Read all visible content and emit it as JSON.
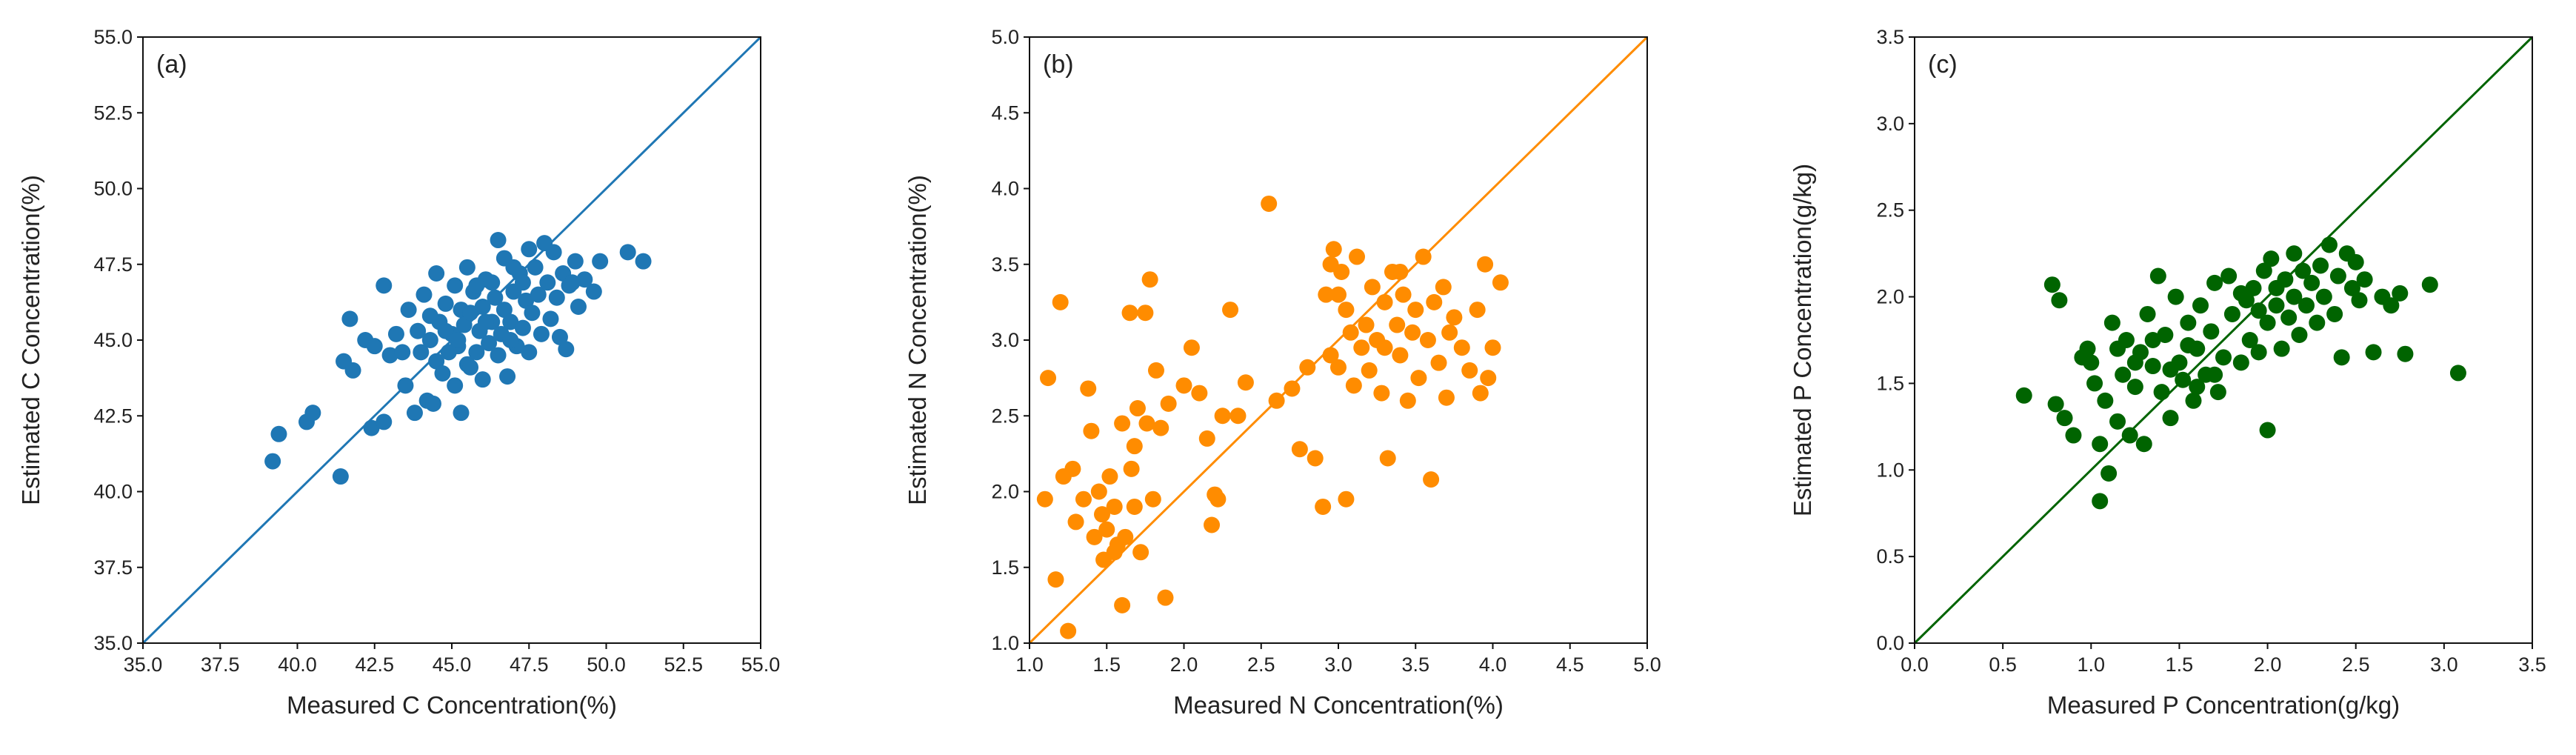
{
  "chart_data": [
    {
      "type": "scatter",
      "panel_label": "(a)",
      "xlabel": "Measured C Concentration(%)",
      "ylabel": "Estimated C Concentration(%)",
      "xlim": [
        35.0,
        55.0
      ],
      "ylim": [
        35.0,
        55.0
      ],
      "xticks": [
        "35.0",
        "37.5",
        "40.0",
        "42.5",
        "45.0",
        "47.5",
        "50.0",
        "52.5",
        "55.0"
      ],
      "yticks": [
        "35.0",
        "37.5",
        "40.0",
        "42.5",
        "45.0",
        "47.5",
        "50.0",
        "52.5",
        "55.0"
      ],
      "reference_line": "1:1",
      "color": "#1f77b4",
      "points": [
        [
          39.2,
          41.0
        ],
        [
          39.4,
          41.9
        ],
        [
          40.3,
          42.3
        ],
        [
          40.5,
          42.6
        ],
        [
          41.4,
          40.5
        ],
        [
          41.5,
          44.3
        ],
        [
          41.7,
          45.7
        ],
        [
          41.8,
          44.0
        ],
        [
          42.2,
          45.0
        ],
        [
          42.4,
          42.1
        ],
        [
          42.5,
          44.8
        ],
        [
          42.8,
          46.8
        ],
        [
          42.8,
          42.3
        ],
        [
          43.0,
          44.5
        ],
        [
          43.2,
          45.2
        ],
        [
          43.4,
          44.6
        ],
        [
          43.5,
          43.5
        ],
        [
          43.6,
          46.0
        ],
        [
          43.8,
          42.6
        ],
        [
          44.0,
          44.6
        ],
        [
          44.1,
          46.5
        ],
        [
          44.2,
          43.0
        ],
        [
          44.3,
          45.0
        ],
        [
          44.4,
          42.9
        ],
        [
          44.5,
          47.2
        ],
        [
          44.5,
          44.3
        ],
        [
          44.6,
          45.6
        ],
        [
          44.7,
          43.9
        ],
        [
          44.8,
          46.2
        ],
        [
          44.9,
          44.6
        ],
        [
          45.0,
          45.2
        ],
        [
          45.1,
          46.8
        ],
        [
          45.1,
          43.5
        ],
        [
          45.2,
          44.8
        ],
        [
          45.3,
          42.6
        ],
        [
          45.3,
          46.0
        ],
        [
          45.4,
          45.5
        ],
        [
          45.5,
          47.4
        ],
        [
          45.5,
          44.2
        ],
        [
          45.6,
          45.9
        ],
        [
          45.7,
          46.6
        ],
        [
          45.8,
          44.6
        ],
        [
          45.9,
          45.3
        ],
        [
          46.0,
          46.1
        ],
        [
          46.0,
          43.7
        ],
        [
          46.1,
          47.0
        ],
        [
          46.2,
          44.9
        ],
        [
          46.3,
          45.6
        ],
        [
          46.4,
          46.4
        ],
        [
          46.5,
          48.3
        ],
        [
          46.5,
          44.5
        ],
        [
          46.6,
          45.2
        ],
        [
          46.7,
          47.7
        ],
        [
          46.7,
          46.0
        ],
        [
          46.8,
          43.8
        ],
        [
          46.9,
          45.6
        ],
        [
          47.0,
          46.6
        ],
        [
          47.1,
          44.8
        ],
        [
          47.2,
          47.2
        ],
        [
          47.3,
          45.4
        ],
        [
          47.4,
          46.3
        ],
        [
          47.5,
          48.0
        ],
        [
          47.5,
          44.6
        ],
        [
          47.6,
          45.9
        ],
        [
          47.7,
          47.4
        ],
        [
          47.8,
          46.5
        ],
        [
          47.9,
          45.2
        ],
        [
          48.0,
          48.2
        ],
        [
          48.1,
          46.9
        ],
        [
          48.2,
          45.7
        ],
        [
          48.3,
          47.9
        ],
        [
          48.4,
          46.4
        ],
        [
          48.5,
          45.1
        ],
        [
          48.6,
          47.2
        ],
        [
          48.7,
          44.7
        ],
        [
          48.8,
          46.8
        ],
        [
          49.0,
          47.6
        ],
        [
          49.1,
          46.1
        ],
        [
          49.3,
          47.0
        ],
        [
          49.6,
          46.6
        ],
        [
          49.8,
          47.6
        ],
        [
          50.7,
          47.9
        ],
        [
          51.2,
          47.6
        ],
        [
          44.3,
          45.8
        ],
        [
          45.2,
          45.0
        ],
        [
          45.8,
          46.8
        ],
        [
          46.3,
          46.9
        ],
        [
          46.9,
          45.0
        ],
        [
          47.3,
          46.9
        ],
        [
          45.6,
          44.1
        ],
        [
          44.8,
          45.3
        ],
        [
          46.1,
          45.6
        ],
        [
          47.0,
          47.4
        ],
        [
          48.9,
          46.9
        ],
        [
          43.9,
          45.3
        ]
      ]
    },
    {
      "type": "scatter",
      "panel_label": "(b)",
      "xlabel": "Measured N Concentration(%)",
      "ylabel": "Estimated N Concentration(%)",
      "xlim": [
        1.0,
        5.0
      ],
      "ylim": [
        1.0,
        5.0
      ],
      "xticks": [
        "1.0",
        "1.5",
        "2.0",
        "2.5",
        "3.0",
        "3.5",
        "4.0",
        "4.5",
        "5.0"
      ],
      "yticks": [
        "1.0",
        "1.5",
        "2.0",
        "2.5",
        "3.0",
        "3.5",
        "4.0",
        "4.5",
        "5.0"
      ],
      "reference_line": "1:1",
      "color": "#ff8c00",
      "points": [
        [
          1.1,
          1.95
        ],
        [
          1.12,
          2.75
        ],
        [
          1.17,
          1.42
        ],
        [
          1.2,
          3.25
        ],
        [
          1.22,
          2.1
        ],
        [
          1.25,
          1.08
        ],
        [
          1.28,
          2.15
        ],
        [
          1.3,
          1.8
        ],
        [
          1.35,
          1.95
        ],
        [
          1.38,
          2.68
        ],
        [
          1.4,
          2.4
        ],
        [
          1.42,
          1.7
        ],
        [
          1.45,
          2.0
        ],
        [
          1.47,
          1.85
        ],
        [
          1.5,
          1.75
        ],
        [
          1.52,
          2.1
        ],
        [
          1.55,
          1.6
        ],
        [
          1.57,
          1.65
        ],
        [
          1.6,
          2.45
        ],
        [
          1.6,
          1.25
        ],
        [
          1.62,
          1.7
        ],
        [
          1.65,
          3.18
        ],
        [
          1.66,
          2.15
        ],
        [
          1.68,
          1.9
        ],
        [
          1.7,
          2.55
        ],
        [
          1.72,
          1.6
        ],
        [
          1.75,
          3.18
        ],
        [
          1.76,
          2.45
        ],
        [
          1.78,
          3.4
        ],
        [
          1.8,
          1.95
        ],
        [
          1.82,
          2.8
        ],
        [
          1.85,
          2.42
        ],
        [
          1.88,
          1.3
        ],
        [
          1.9,
          2.58
        ],
        [
          2.0,
          2.7
        ],
        [
          2.05,
          2.95
        ],
        [
          2.1,
          2.65
        ],
        [
          2.15,
          2.35
        ],
        [
          2.18,
          1.78
        ],
        [
          2.2,
          1.98
        ],
        [
          2.25,
          2.5
        ],
        [
          2.3,
          3.2
        ],
        [
          2.35,
          2.5
        ],
        [
          2.4,
          2.72
        ],
        [
          2.55,
          3.9
        ],
        [
          2.6,
          2.6
        ],
        [
          2.7,
          2.68
        ],
        [
          2.75,
          2.28
        ],
        [
          2.8,
          2.82
        ],
        [
          2.85,
          2.22
        ],
        [
          2.9,
          1.9
        ],
        [
          2.92,
          3.3
        ],
        [
          2.95,
          2.9
        ],
        [
          2.97,
          3.6
        ],
        [
          3.0,
          2.82
        ],
        [
          3.02,
          3.45
        ],
        [
          3.05,
          3.2
        ],
        [
          3.05,
          1.95
        ],
        [
          3.08,
          3.05
        ],
        [
          3.1,
          2.7
        ],
        [
          3.12,
          3.55
        ],
        [
          3.15,
          2.95
        ],
        [
          3.18,
          3.1
        ],
        [
          3.2,
          2.8
        ],
        [
          3.22,
          3.35
        ],
        [
          3.25,
          3.0
        ],
        [
          3.28,
          2.65
        ],
        [
          3.3,
          3.25
        ],
        [
          3.32,
          2.22
        ],
        [
          3.35,
          3.45
        ],
        [
          3.38,
          3.1
        ],
        [
          3.4,
          2.9
        ],
        [
          3.42,
          3.3
        ],
        [
          3.45,
          2.6
        ],
        [
          3.48,
          3.05
        ],
        [
          3.5,
          3.2
        ],
        [
          3.52,
          2.75
        ],
        [
          3.55,
          3.55
        ],
        [
          3.58,
          3.0
        ],
        [
          3.6,
          2.08
        ],
        [
          3.62,
          3.25
        ],
        [
          3.65,
          2.85
        ],
        [
          3.68,
          3.35
        ],
        [
          3.7,
          2.62
        ],
        [
          3.72,
          3.05
        ],
        [
          3.75,
          3.15
        ],
        [
          3.8,
          2.95
        ],
        [
          3.85,
          2.8
        ],
        [
          3.9,
          3.2
        ],
        [
          3.95,
          3.5
        ],
        [
          3.97,
          2.75
        ],
        [
          4.0,
          2.95
        ],
        [
          4.05,
          3.38
        ],
        [
          3.92,
          2.65
        ],
        [
          3.0,
          3.3
        ],
        [
          3.4,
          3.45
        ],
        [
          2.95,
          3.5
        ],
        [
          3.3,
          2.95
        ],
        [
          1.55,
          1.9
        ],
        [
          1.48,
          1.55
        ],
        [
          2.22,
          1.95
        ],
        [
          1.68,
          2.3
        ]
      ]
    },
    {
      "type": "scatter",
      "panel_label": "(c)",
      "xlabel": "Measured P Concentration(g/kg)",
      "ylabel": "Estimated P Concentration(g/kg)",
      "xlim": [
        0.0,
        3.5
      ],
      "ylim": [
        0.0,
        3.5
      ],
      "xticks": [
        "0.0",
        "0.5",
        "1.0",
        "1.5",
        "2.0",
        "2.5",
        "3.0",
        "3.5"
      ],
      "yticks": [
        "0.0",
        "0.5",
        "1.0",
        "1.5",
        "2.0",
        "2.5",
        "3.0",
        "3.5"
      ],
      "reference_line": "1:1",
      "color": "#006400",
      "points": [
        [
          0.62,
          1.43
        ],
        [
          0.78,
          2.07
        ],
        [
          0.8,
          1.38
        ],
        [
          0.82,
          1.98
        ],
        [
          0.85,
          1.3
        ],
        [
          0.9,
          1.2
        ],
        [
          0.95,
          1.65
        ],
        [
          0.98,
          1.7
        ],
        [
          1.0,
          1.62
        ],
        [
          1.02,
          1.5
        ],
        [
          1.05,
          1.15
        ],
        [
          1.05,
          0.82
        ],
        [
          1.08,
          1.4
        ],
        [
          1.1,
          0.98
        ],
        [
          1.12,
          1.85
        ],
        [
          1.15,
          1.28
        ],
        [
          1.18,
          1.55
        ],
        [
          1.2,
          1.75
        ],
        [
          1.22,
          1.2
        ],
        [
          1.25,
          1.48
        ],
        [
          1.28,
          1.68
        ],
        [
          1.3,
          1.15
        ],
        [
          1.32,
          1.9
        ],
        [
          1.35,
          1.6
        ],
        [
          1.38,
          2.12
        ],
        [
          1.4,
          1.45
        ],
        [
          1.42,
          1.78
        ],
        [
          1.45,
          1.3
        ],
        [
          1.48,
          2.0
        ],
        [
          1.5,
          1.62
        ],
        [
          1.52,
          1.52
        ],
        [
          1.55,
          1.85
        ],
        [
          1.58,
          1.4
        ],
        [
          1.6,
          1.7
        ],
        [
          1.62,
          1.95
        ],
        [
          1.65,
          1.55
        ],
        [
          1.68,
          1.8
        ],
        [
          1.7,
          2.08
        ],
        [
          1.72,
          1.45
        ],
        [
          1.75,
          1.65
        ],
        [
          1.78,
          2.12
        ],
        [
          1.8,
          1.9
        ],
        [
          1.85,
          1.62
        ],
        [
          1.88,
          1.98
        ],
        [
          1.9,
          1.75
        ],
        [
          1.92,
          2.05
        ],
        [
          1.95,
          1.68
        ],
        [
          1.98,
          2.15
        ],
        [
          2.0,
          1.85
        ],
        [
          2.0,
          1.23
        ],
        [
          2.02,
          2.22
        ],
        [
          2.05,
          1.95
        ],
        [
          2.08,
          1.7
        ],
        [
          2.1,
          2.1
        ],
        [
          2.12,
          1.88
        ],
        [
          2.15,
          2.0
        ],
        [
          2.18,
          1.78
        ],
        [
          2.2,
          2.15
        ],
        [
          2.22,
          1.95
        ],
        [
          2.25,
          2.08
        ],
        [
          2.28,
          1.85
        ],
        [
          2.3,
          2.18
        ],
        [
          2.32,
          2.0
        ],
        [
          2.35,
          2.3
        ],
        [
          2.38,
          1.9
        ],
        [
          2.4,
          2.12
        ],
        [
          2.42,
          1.65
        ],
        [
          2.45,
          2.25
        ],
        [
          2.48,
          2.05
        ],
        [
          2.5,
          2.2
        ],
        [
          2.52,
          1.98
        ],
        [
          2.55,
          2.1
        ],
        [
          2.6,
          1.68
        ],
        [
          2.65,
          2.0
        ],
        [
          2.7,
          1.95
        ],
        [
          2.75,
          2.02
        ],
        [
          2.78,
          1.67
        ],
        [
          2.92,
          2.07
        ],
        [
          3.08,
          1.56
        ],
        [
          1.35,
          1.75
        ],
        [
          1.45,
          1.58
        ],
        [
          1.6,
          1.48
        ],
        [
          1.95,
          1.92
        ],
        [
          2.05,
          2.05
        ],
        [
          1.25,
          1.62
        ],
        [
          1.15,
          1.7
        ],
        [
          1.7,
          1.55
        ],
        [
          2.15,
          2.25
        ],
        [
          1.85,
          2.02
        ],
        [
          1.55,
          1.72
        ]
      ]
    }
  ]
}
